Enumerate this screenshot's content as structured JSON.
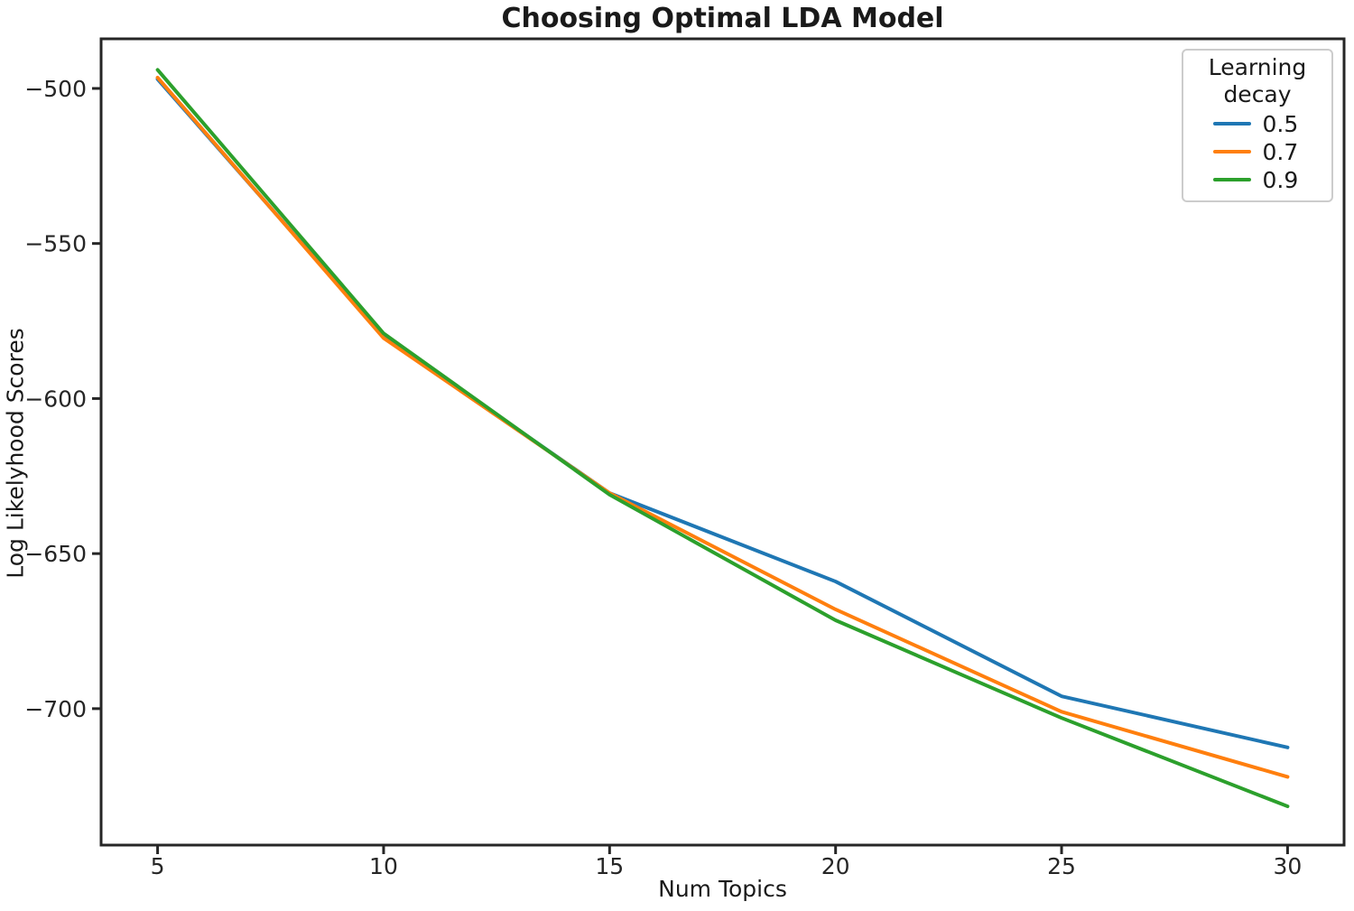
{
  "chart_data": {
    "type": "line",
    "title": "Choosing Optimal LDA Model",
    "xlabel": "Num Topics",
    "ylabel": "Log Likelyhood Scores",
    "x": [
      5,
      10,
      15,
      20,
      25,
      30
    ],
    "series": [
      {
        "name": "0.5",
        "color": "#1f77b4",
        "values": [
          -497,
          -580,
          -630.5,
          -659,
          -696,
          -712.5
        ]
      },
      {
        "name": "0.7",
        "color": "#ff7f0e",
        "values": [
          -496.5,
          -580.5,
          -630.5,
          -668,
          -701,
          -722
        ]
      },
      {
        "name": "0.9",
        "color": "#2ca02c",
        "values": [
          -494,
          -579,
          -631,
          -671.5,
          -703,
          -731.5
        ]
      }
    ],
    "xlim": [
      3.75,
      31.25
    ],
    "ylim": [
      -744,
      -484
    ],
    "x_ticks": {
      "values": [
        5,
        10,
        15,
        20,
        25,
        30
      ],
      "labels": [
        "5",
        "10",
        "15",
        "20",
        "25",
        "30"
      ]
    },
    "y_ticks": {
      "values": [
        -500,
        -550,
        -600,
        -650,
        -700
      ],
      "labels": [
        "−500",
        "−550",
        "−600",
        "−650",
        "−700"
      ]
    },
    "legend": {
      "title": "Learning decay",
      "position": "upper right"
    },
    "grid": false,
    "axis_color": "#262626",
    "background": "#ffffff",
    "line_width": 4
  }
}
